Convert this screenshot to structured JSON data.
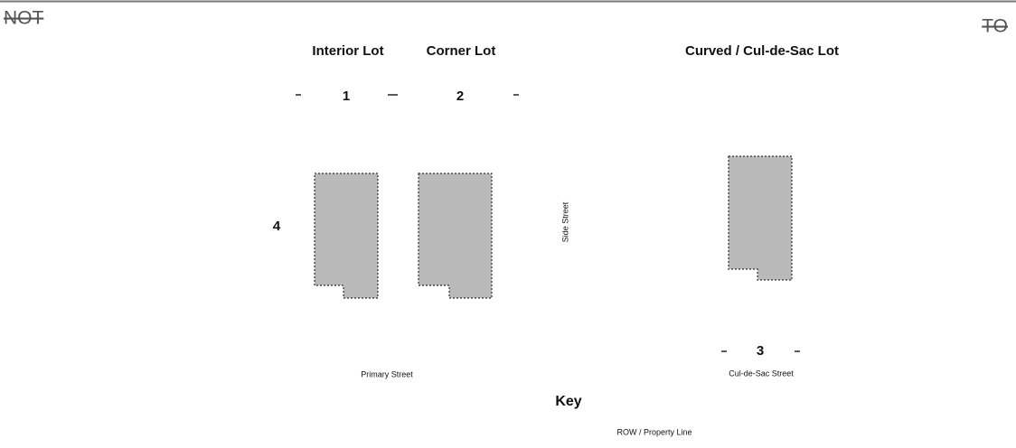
{
  "header": {
    "left": "NOT",
    "right": "TO"
  },
  "lots": [
    {
      "title": "Interior Lot",
      "number": "1"
    },
    {
      "title": "Corner Lot",
      "number": "2"
    },
    {
      "title": "Curved / Cul-de-Sac Lot",
      "number": "3"
    }
  ],
  "side_number": "4",
  "streets": {
    "side": "Side Street",
    "primary": "Primary Street",
    "cul_de_sac": "Cul-de-Sac Street"
  },
  "key": {
    "title": "Key",
    "items": [
      "ROW / Property Line"
    ]
  }
}
